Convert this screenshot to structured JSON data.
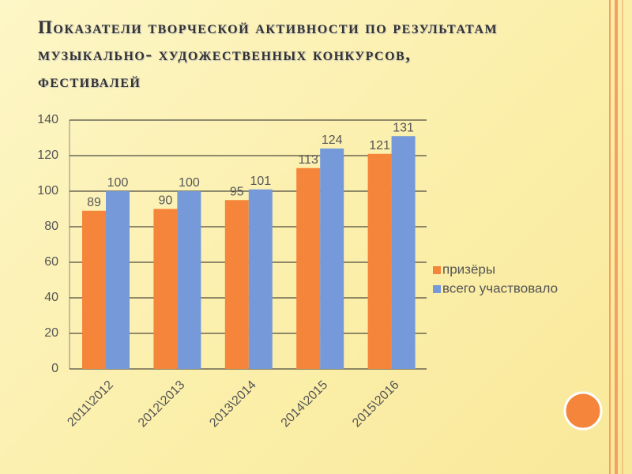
{
  "chart_data": {
    "type": "bar",
    "title": "Показатели творческой активности по результатам музыкально- художественных конкурсов, фестивалей",
    "categories": [
      "2011\\2012",
      "2012\\2013",
      "2013\\2014",
      "2014\\2015",
      "2015\\2016"
    ],
    "series": [
      {
        "name": "призёры",
        "color": "#f5853a",
        "values": [
          89,
          90,
          95,
          113,
          121
        ]
      },
      {
        "name": "всего участвовало",
        "color": "#7599d9",
        "values": [
          100,
          100,
          101,
          124,
          131
        ]
      }
    ],
    "ylim": [
      0,
      140
    ],
    "yticks": [
      0,
      20,
      40,
      60,
      80,
      100,
      120,
      140
    ],
    "grid": true,
    "legend": "right"
  }
}
